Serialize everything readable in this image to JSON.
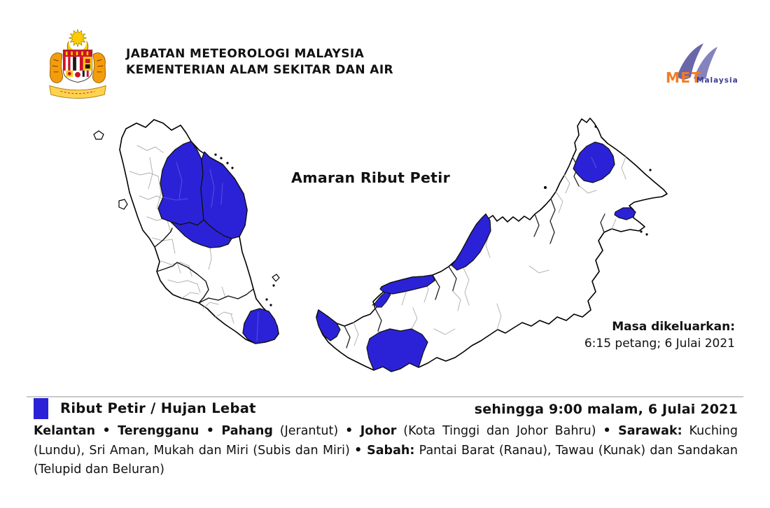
{
  "header": {
    "agency_line1": "JABATAN METEOROLOGI MALAYSIA",
    "agency_line2": "KEMENTERIAN ALAM SEKITAR DAN AIR",
    "met_logo": {
      "met": "MET",
      "malaysia": "Malaysia"
    }
  },
  "map": {
    "title": "Amaran Ribut Petir",
    "issued_label": "Masa dikeluarkan:",
    "issued_value": "6:15 petang; 6 Julai 2021",
    "highlight_color": "#2B22D8",
    "regions": [
      "Kelantan",
      "Terengganu",
      "Jerantut",
      "Kota Tinggi dan Johor Bahru",
      "Lundu",
      "Sri Aman",
      "Mukah",
      "Subis dan Miri",
      "Ranau / Telupid / Beluran",
      "Kunak"
    ]
  },
  "legend": {
    "swatch_color": "#2B22D8",
    "label": "Ribut Petir / Hujan Lebat",
    "validity": "sehingga 9:00 malam, 6 Julai 2021"
  },
  "areas": {
    "segments": [
      {
        "t": "Kelantan",
        "b": true
      },
      {
        "t": " • ",
        "b": true
      },
      {
        "t": "Terengganu",
        "b": true
      },
      {
        "t": " • ",
        "b": true
      },
      {
        "t": "Pahang",
        "b": true
      },
      {
        "t": " (Jerantut) ",
        "b": false
      },
      {
        "t": "• ",
        "b": true
      },
      {
        "t": "Johor",
        "b": true
      },
      {
        "t": " (Kota Tinggi dan Johor Bahru) ",
        "b": false
      },
      {
        "t": "• ",
        "b": true
      },
      {
        "t": "Sarawak:",
        "b": true
      },
      {
        "t": " Kuching (Lundu), Sri Aman, Mukah dan Miri (Subis dan Miri) ",
        "b": false
      },
      {
        "t": "• ",
        "b": true
      },
      {
        "t": "Sabah:",
        "b": true
      },
      {
        "t": " Pantai Barat (Ranau), Tawau (Kunak) dan Sandakan (Telupid dan Beluran)",
        "b": false
      }
    ]
  }
}
